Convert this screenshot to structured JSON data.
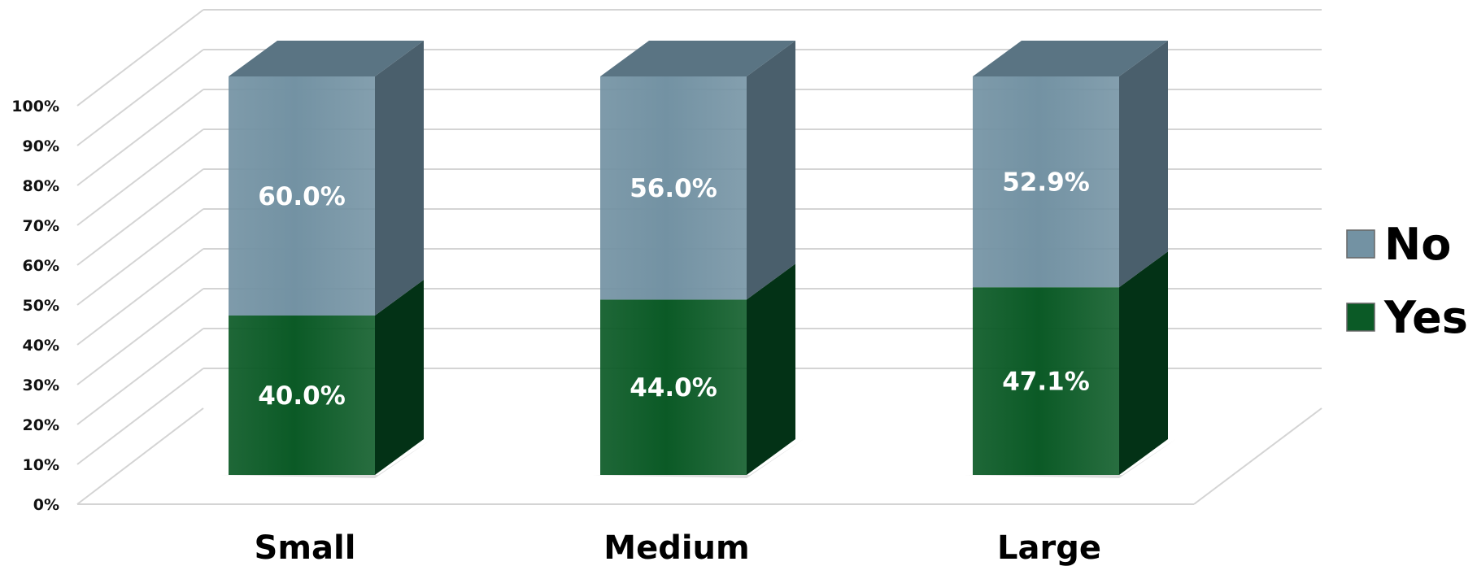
{
  "chart_data": {
    "type": "bar",
    "stacked": true,
    "percent": true,
    "three_d": true,
    "categories": [
      "Small",
      "Medium",
      "Large"
    ],
    "series": [
      {
        "name": "Yes",
        "values": [
          40.0,
          44.0,
          47.1
        ],
        "color": "#0b5a26",
        "side_color": "#033216",
        "top_color": "#0a4a20"
      },
      {
        "name": "No",
        "values": [
          60.0,
          56.0,
          52.9
        ],
        "color": "#7392a3",
        "side_color": "#4a5f6c",
        "top_color": "#5a7483"
      }
    ],
    "data_labels": [
      [
        "40.0%",
        "44.0%",
        "47.1%"
      ],
      [
        "60.0%",
        "56.0%",
        "52.9%"
      ]
    ],
    "y_ticks": [
      "0%",
      "10%",
      "20%",
      "30%",
      "40%",
      "50%",
      "60%",
      "70%",
      "80%",
      "90%",
      "100%"
    ],
    "ylim": [
      0,
      100
    ],
    "grid": true,
    "legend": {
      "position": "right",
      "entries": [
        "No",
        "Yes"
      ]
    },
    "title": "",
    "xlabel": "",
    "ylabel": ""
  }
}
